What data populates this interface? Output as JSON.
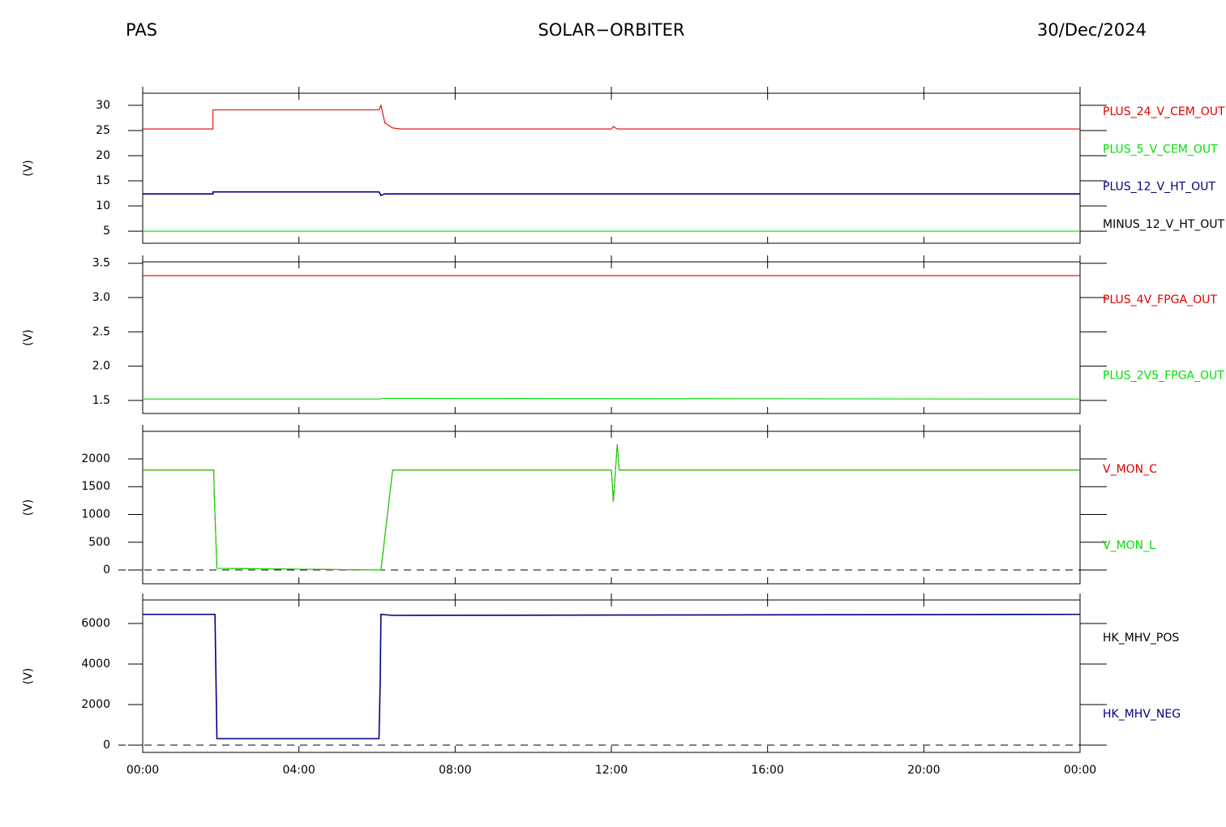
{
  "header": {
    "left": "PAS",
    "center": "SOLAR−ORBITER",
    "right": "30/Dec/2024"
  },
  "chart_data": [
    {
      "type": "line",
      "ylabel": "(V)",
      "xlim": [
        0,
        24
      ],
      "ylim": [
        2.6,
        32.4
      ],
      "yticks": [
        5,
        10,
        15,
        20,
        25,
        30
      ],
      "x": [
        0,
        1.8,
        1.8,
        6.05,
        6.1,
        6.2,
        6.4,
        6.6,
        12.0,
        12.05,
        12.15,
        24
      ],
      "series": [
        {
          "name": "PLUS_24_V_CEM_OUT",
          "color": "#e00000",
          "values": [
            25.3,
            25.3,
            29.1,
            29.1,
            30.0,
            26.5,
            25.5,
            25.3,
            25.3,
            25.8,
            25.3,
            25.3
          ]
        },
        {
          "name": "PLUS_5_V_CEM_OUT",
          "color": "#00e000",
          "values": [
            5,
            5,
            5,
            5,
            5,
            5,
            5,
            5,
            5,
            5,
            5,
            5
          ]
        },
        {
          "name": "PLUS_12_V_HT_OUT",
          "color": "#000080",
          "values": [
            12.4,
            12.4,
            12.8,
            12.8,
            12.1,
            12.4,
            12.4,
            12.4,
            12.4,
            12.4,
            12.4,
            12.4
          ]
        },
        {
          "name": "MINUS_12_V_HT_OUT",
          "color": "#000000",
          "values": [
            null,
            null,
            null,
            null,
            null,
            null,
            null,
            null,
            null,
            null,
            null,
            null
          ]
        }
      ]
    },
    {
      "type": "line",
      "ylabel": "(V)",
      "xlim": [
        0,
        24
      ],
      "ylim": [
        1.31,
        3.52
      ],
      "yticks": [
        1.5,
        {
          "value": 2,
          "label": "2.0"
        },
        2.5,
        {
          "value": 3,
          "label": "3.0"
        },
        3.5
      ],
      "x": [
        0,
        6.1,
        6.12,
        24
      ],
      "series": [
        {
          "name": "PLUS_4V_FPGA_OUT",
          "color": "#e00000",
          "values": [
            3.32,
            3.32,
            3.32,
            3.32
          ]
        },
        {
          "name": "PLUS_2V5_FPGA_OUT",
          "color": "#00e000",
          "values": [
            1.52,
            1.52,
            1.53,
            1.52
          ]
        }
      ]
    },
    {
      "type": "line",
      "ylabel": "(V)",
      "xlim": [
        0,
        24
      ],
      "ylim": [
        -248,
        2496
      ],
      "yticks": [
        0,
        500,
        1000,
        1500,
        2000
      ],
      "reference_line": 0,
      "x": [
        0,
        1.82,
        1.83,
        1.9,
        6.1,
        6.4,
        12.0,
        12.05,
        12.15,
        12.2,
        24
      ],
      "series": [
        {
          "name": "V_MON_C",
          "color": "#e00000",
          "values": [
            1800,
            1800,
            1400,
            30,
            0,
            1800,
            1800,
            1226,
            2263,
            1800,
            1800
          ]
        },
        {
          "name": "V_MON_L",
          "color": "#00e000",
          "values": [
            1800,
            1800,
            1400,
            30,
            0,
            1800,
            1800,
            1226,
            2263,
            1800,
            1800
          ]
        }
      ]
    },
    {
      "type": "line",
      "ylabel": "(V)",
      "xlim": [
        0,
        24
      ],
      "ylim": [
        -360,
        7160
      ],
      "yticks": [
        0,
        2000,
        4000,
        6000
      ],
      "reference_line": 0,
      "x": [
        0,
        1.85,
        1.9,
        6.05,
        6.08,
        6.1,
        6.4,
        24
      ],
      "xticks": [
        {
          "value": 0,
          "label": "00:00"
        },
        {
          "value": 4,
          "label": "04:00"
        },
        {
          "value": 8,
          "label": "08:00"
        },
        {
          "value": 12,
          "label": "12:00"
        },
        {
          "value": 16,
          "label": "16:00"
        },
        {
          "value": 20,
          "label": "20:00"
        },
        {
          "value": 24,
          "label": "00:00"
        }
      ],
      "series": [
        {
          "name": "HK_MHV_POS",
          "color": "#000000",
          "values": [
            null,
            null,
            null,
            null,
            null,
            null,
            null,
            null
          ]
        },
        {
          "name": "HK_MHV_NEG",
          "color": "#000080",
          "values": [
            6450,
            6450,
            320,
            320,
            3000,
            6450,
            6400,
            6450
          ]
        }
      ]
    }
  ]
}
